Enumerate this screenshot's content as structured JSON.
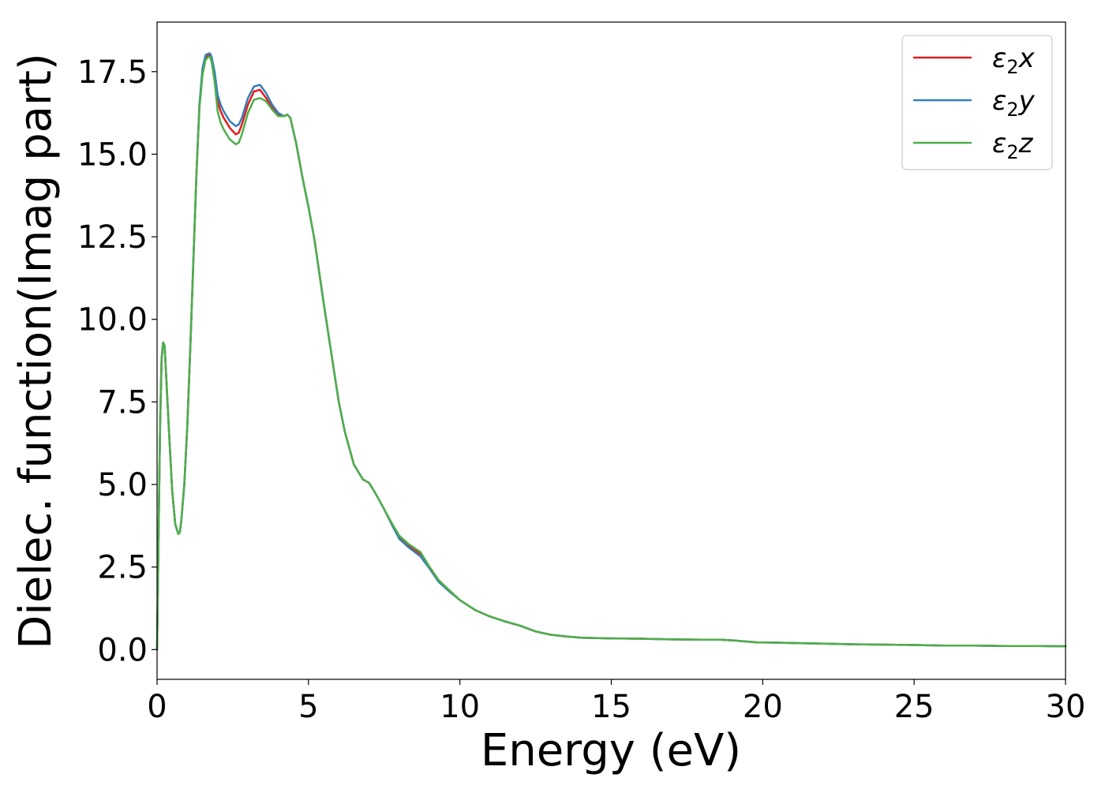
{
  "chart_data": {
    "type": "line",
    "title": "",
    "xlabel": "Energy (eV)",
    "ylabel": "Dielec. function(Imag part)",
    "xlim": [
      0,
      30
    ],
    "ylim": [
      -0.9,
      19.0
    ],
    "xticks": [
      0,
      5,
      10,
      15,
      20,
      25,
      30
    ],
    "xtick_labels": [
      "0",
      "5",
      "10",
      "15",
      "20",
      "25",
      "30"
    ],
    "yticks": [
      0.0,
      2.5,
      5.0,
      7.5,
      10.0,
      12.5,
      15.0,
      17.5
    ],
    "ytick_labels": [
      "0.0",
      "2.5",
      "5.0",
      "7.5",
      "10.0",
      "12.5",
      "15.0",
      "17.5"
    ],
    "grid": false,
    "legend_position": "top-right",
    "series": [
      {
        "name": "ε2x",
        "symbol": "ε",
        "subscript": "2",
        "suffix": "x",
        "color": "#e41a1c",
        "x": [
          0,
          0.05,
          0.1,
          0.15,
          0.2,
          0.25,
          0.3,
          0.4,
          0.5,
          0.6,
          0.7,
          0.75,
          0.8,
          0.9,
          1.0,
          1.1,
          1.2,
          1.3,
          1.4,
          1.5,
          1.6,
          1.7,
          1.75,
          1.8,
          1.9,
          2.0,
          2.1,
          2.2,
          2.4,
          2.6,
          2.7,
          2.8,
          3.0,
          3.2,
          3.4,
          3.6,
          3.8,
          4.0,
          4.2,
          4.3,
          4.4,
          4.6,
          4.8,
          5.0,
          5.2,
          5.5,
          5.8,
          6.0,
          6.2,
          6.5,
          6.8,
          7.0,
          7.2,
          7.5,
          7.8,
          8.0,
          8.3,
          8.7,
          9.0,
          9.3,
          9.7,
          10.0,
          10.5,
          11.0,
          11.5,
          12.0,
          12.5,
          13.0,
          13.5,
          14.0,
          15.0,
          16.0,
          17.0,
          18.0,
          18.6,
          19.0,
          19.8,
          20.5,
          21.0,
          22.0,
          23.0,
          24.0,
          25.0,
          26.0,
          27.0,
          28.0,
          29.0,
          30.0
        ],
        "y": [
          0.0,
          3.5,
          6.8,
          8.8,
          9.3,
          9.2,
          8.3,
          6.5,
          4.8,
          3.8,
          3.5,
          3.55,
          3.9,
          5.0,
          6.8,
          9.2,
          11.8,
          14.4,
          16.5,
          17.5,
          17.9,
          18.0,
          18.0,
          17.9,
          17.4,
          16.6,
          16.3,
          16.1,
          15.8,
          15.6,
          15.65,
          15.9,
          16.5,
          16.9,
          16.95,
          16.7,
          16.4,
          16.2,
          16.15,
          16.2,
          16.1,
          15.3,
          14.3,
          13.4,
          12.4,
          10.5,
          8.7,
          7.5,
          6.6,
          5.6,
          5.15,
          5.05,
          4.75,
          4.25,
          3.7,
          3.4,
          3.15,
          2.9,
          2.5,
          2.1,
          1.75,
          1.5,
          1.2,
          1.0,
          0.85,
          0.72,
          0.55,
          0.45,
          0.4,
          0.36,
          0.34,
          0.33,
          0.31,
          0.3,
          0.3,
          0.28,
          0.22,
          0.21,
          0.2,
          0.18,
          0.16,
          0.15,
          0.14,
          0.12,
          0.12,
          0.11,
          0.11,
          0.1
        ]
      },
      {
        "name": "ε2y",
        "symbol": "ε",
        "subscript": "2",
        "suffix": "y",
        "color": "#377eb8",
        "x": [
          0,
          0.05,
          0.1,
          0.15,
          0.2,
          0.25,
          0.3,
          0.4,
          0.5,
          0.6,
          0.7,
          0.75,
          0.8,
          0.9,
          1.0,
          1.1,
          1.2,
          1.3,
          1.4,
          1.5,
          1.6,
          1.7,
          1.75,
          1.8,
          1.9,
          2.0,
          2.1,
          2.2,
          2.4,
          2.6,
          2.7,
          2.8,
          3.0,
          3.2,
          3.4,
          3.6,
          3.8,
          4.0,
          4.2,
          4.3,
          4.4,
          4.6,
          4.8,
          5.0,
          5.2,
          5.5,
          5.8,
          6.0,
          6.2,
          6.5,
          6.8,
          7.0,
          7.2,
          7.5,
          7.8,
          8.0,
          8.3,
          8.7,
          9.0,
          9.3,
          9.7,
          10.0,
          10.5,
          11.0,
          11.5,
          12.0,
          12.5,
          13.0,
          13.5,
          14.0,
          15.0,
          16.0,
          17.0,
          18.0,
          18.6,
          19.0,
          19.8,
          20.5,
          21.0,
          22.0,
          23.0,
          24.0,
          25.0,
          26.0,
          27.0,
          28.0,
          29.0,
          30.0
        ],
        "y": [
          0.0,
          3.5,
          6.8,
          8.8,
          9.3,
          9.2,
          8.3,
          6.5,
          4.8,
          3.8,
          3.5,
          3.55,
          3.9,
          5.0,
          6.8,
          9.2,
          11.8,
          14.4,
          16.5,
          17.6,
          18.0,
          18.05,
          18.05,
          17.95,
          17.5,
          16.8,
          16.5,
          16.3,
          16.0,
          15.85,
          15.9,
          16.1,
          16.7,
          17.05,
          17.1,
          16.85,
          16.5,
          16.25,
          16.15,
          16.2,
          16.1,
          15.3,
          14.3,
          13.4,
          12.4,
          10.5,
          8.7,
          7.5,
          6.6,
          5.6,
          5.15,
          5.05,
          4.75,
          4.25,
          3.7,
          3.35,
          3.1,
          2.82,
          2.45,
          2.05,
          1.72,
          1.5,
          1.2,
          1.0,
          0.85,
          0.72,
          0.55,
          0.45,
          0.4,
          0.36,
          0.34,
          0.33,
          0.31,
          0.3,
          0.3,
          0.28,
          0.22,
          0.21,
          0.2,
          0.18,
          0.16,
          0.15,
          0.14,
          0.12,
          0.12,
          0.11,
          0.11,
          0.1
        ]
      },
      {
        "name": "ε2z",
        "symbol": "ε",
        "subscript": "2",
        "suffix": "z",
        "color": "#4daf4a",
        "x": [
          0,
          0.05,
          0.1,
          0.15,
          0.2,
          0.25,
          0.3,
          0.4,
          0.5,
          0.6,
          0.7,
          0.75,
          0.8,
          0.9,
          1.0,
          1.1,
          1.2,
          1.3,
          1.4,
          1.5,
          1.6,
          1.7,
          1.75,
          1.8,
          1.9,
          2.0,
          2.1,
          2.2,
          2.4,
          2.6,
          2.7,
          2.8,
          3.0,
          3.2,
          3.4,
          3.6,
          3.8,
          4.0,
          4.2,
          4.3,
          4.4,
          4.6,
          4.8,
          5.0,
          5.2,
          5.5,
          5.8,
          6.0,
          6.2,
          6.5,
          6.8,
          7.0,
          7.2,
          7.5,
          7.8,
          8.0,
          8.3,
          8.7,
          9.0,
          9.3,
          9.7,
          10.0,
          10.5,
          11.0,
          11.5,
          12.0,
          12.5,
          13.0,
          13.5,
          14.0,
          15.0,
          16.0,
          17.0,
          18.0,
          18.6,
          19.0,
          19.8,
          20.5,
          21.0,
          22.0,
          23.0,
          24.0,
          25.0,
          26.0,
          27.0,
          28.0,
          29.0,
          30.0
        ],
        "y": [
          0.0,
          3.5,
          6.8,
          8.8,
          9.3,
          9.2,
          8.3,
          6.5,
          4.8,
          3.8,
          3.5,
          3.55,
          3.9,
          5.0,
          6.8,
          9.2,
          11.8,
          14.4,
          16.4,
          17.4,
          17.85,
          17.95,
          17.95,
          17.8,
          17.2,
          16.3,
          15.95,
          15.75,
          15.45,
          15.3,
          15.35,
          15.6,
          16.25,
          16.65,
          16.7,
          16.6,
          16.35,
          16.15,
          16.15,
          16.2,
          16.1,
          15.3,
          14.3,
          13.4,
          12.4,
          10.5,
          8.7,
          7.5,
          6.6,
          5.6,
          5.15,
          5.05,
          4.75,
          4.25,
          3.75,
          3.45,
          3.2,
          2.95,
          2.5,
          2.1,
          1.75,
          1.5,
          1.2,
          1.0,
          0.85,
          0.72,
          0.55,
          0.45,
          0.4,
          0.36,
          0.34,
          0.33,
          0.31,
          0.3,
          0.3,
          0.28,
          0.22,
          0.21,
          0.2,
          0.18,
          0.16,
          0.15,
          0.14,
          0.12,
          0.12,
          0.11,
          0.11,
          0.1
        ]
      }
    ]
  }
}
